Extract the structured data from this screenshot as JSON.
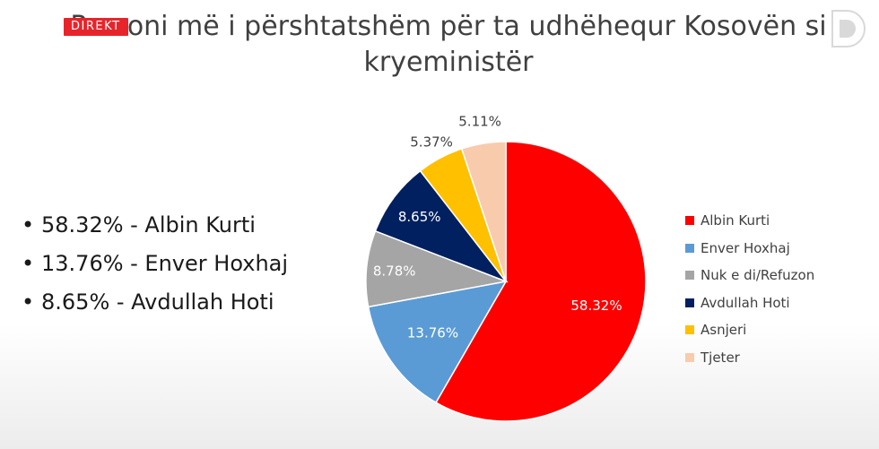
{
  "header": {
    "title_line1": "Personi më i përshtatshëm për ta udhëhequr Kosovën si",
    "title_line2": "kryeministër",
    "live_badge": "DIREKT"
  },
  "summary": {
    "items": [
      "58.32% - Albin Kurti",
      "13.76% - Enver Hoxhaj",
      "8.65% - Avdullah Hoti"
    ]
  },
  "chart_data": {
    "type": "pie",
    "title": "Personi më i përshtatshëm për ta udhëhequr Kosovën si kryeministër",
    "start": "12 o'clock",
    "direction": "clockwise",
    "legend_position": "right",
    "slices": [
      {
        "label": "Albin Kurti",
        "value": 58.32,
        "value_label": "58.32%",
        "color": "#ff0000",
        "label_color": "#ffffff"
      },
      {
        "label": "Enver Hoxhaj",
        "value": 13.76,
        "value_label": "13.76%",
        "color": "#5b9bd5",
        "label_color": "#ffffff"
      },
      {
        "label": "Nuk e di/Refuzon",
        "value": 8.78,
        "value_label": "8.78%",
        "color": "#a5a5a5",
        "label_color": "#ffffff"
      },
      {
        "label": "Avdullah Hoti",
        "value": 8.65,
        "value_label": "8.65%",
        "color": "#002060",
        "label_color": "#ffffff"
      },
      {
        "label": "Asnjeri",
        "value": 5.37,
        "value_label": "5.37%",
        "color": "#ffc000",
        "label_color": "#404040"
      },
      {
        "label": "Tjeter",
        "value": 5.11,
        "value_label": "5.11%",
        "color": "#f8cbad",
        "label_color": "#404040"
      }
    ]
  },
  "colors": {
    "badge": "#e8242b",
    "text": "#404040"
  },
  "icons": {
    "logo": "d-logo-icon"
  }
}
